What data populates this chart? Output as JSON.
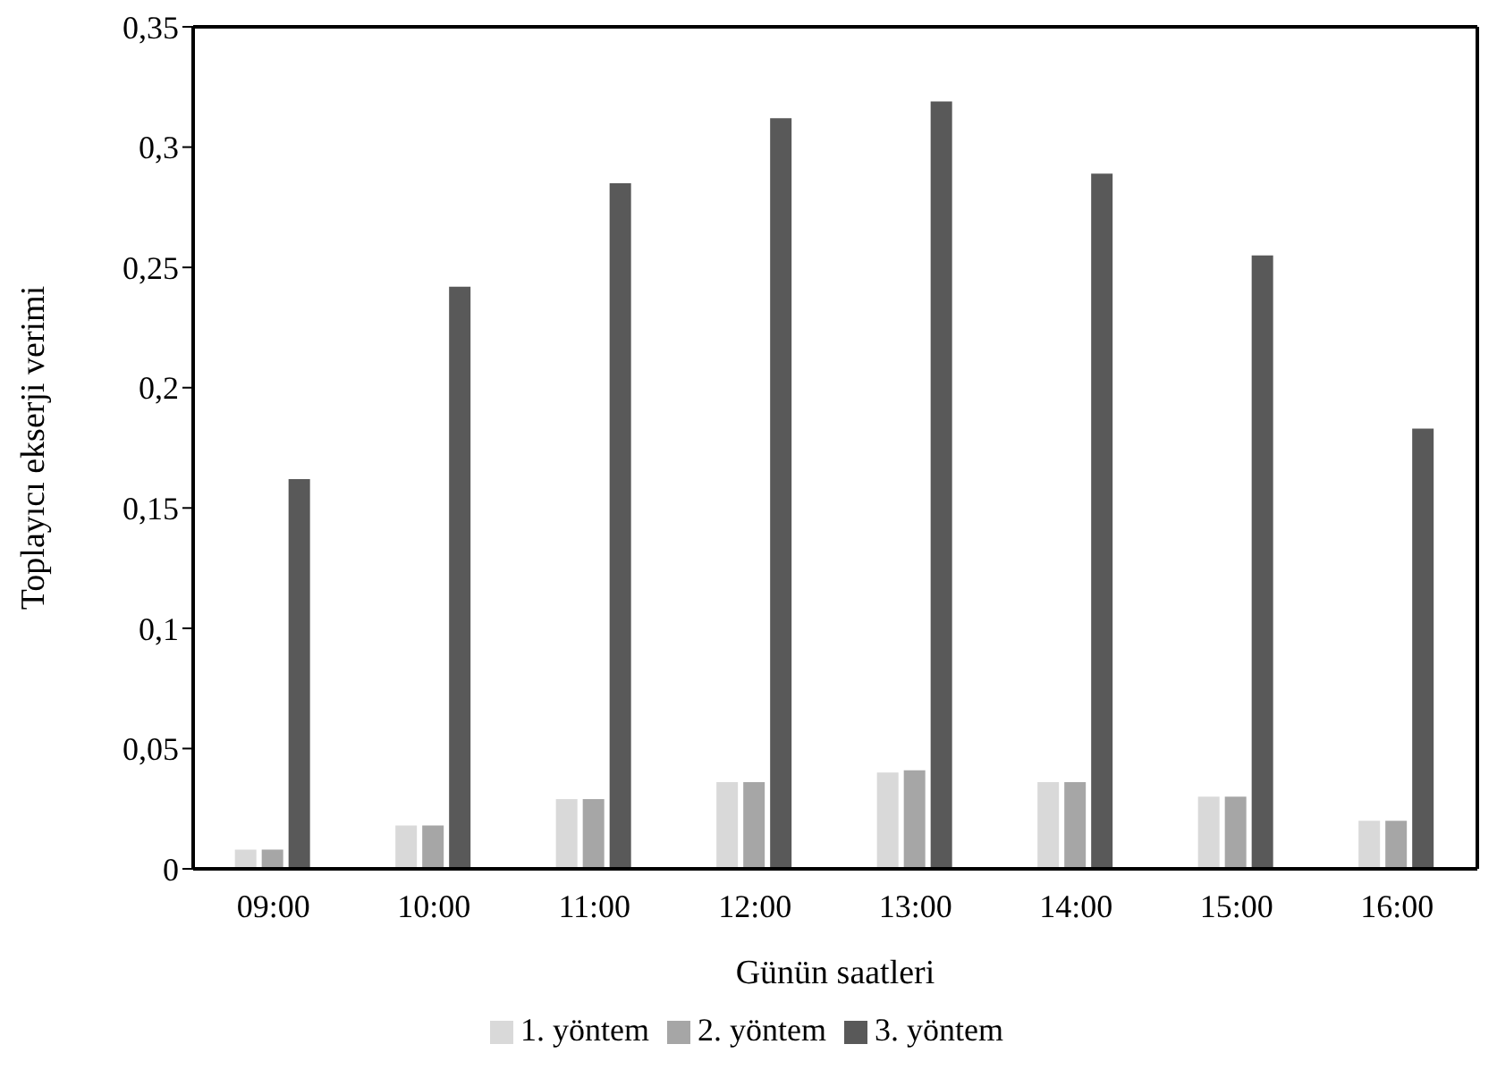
{
  "chart_data": {
    "type": "bar",
    "xlabel": "Günün saatleri",
    "ylabel": "Toplayıcı ekserji verimi",
    "categories": [
      "09:00",
      "10:00",
      "11:00",
      "12:00",
      "13:00",
      "14:00",
      "15:00",
      "16:00"
    ],
    "series": [
      {
        "name": "1. yöntem",
        "color": "#d9d9d9",
        "values": [
          0.008,
          0.018,
          0.029,
          0.036,
          0.04,
          0.036,
          0.03,
          0.02
        ]
      },
      {
        "name": "2. yöntem",
        "color": "#a6a6a6",
        "values": [
          0.008,
          0.018,
          0.029,
          0.036,
          0.041,
          0.036,
          0.03,
          0.02
        ]
      },
      {
        "name": "3. yöntem",
        "color": "#595959",
        "values": [
          0.162,
          0.242,
          0.285,
          0.312,
          0.319,
          0.289,
          0.255,
          0.183
        ]
      }
    ],
    "ylim": [
      0,
      0.35
    ],
    "yticks": [
      0,
      {
        "value": 0.05,
        "label": "0,05"
      },
      {
        "value": 0.1,
        "label": "0,1"
      },
      {
        "value": 0.15,
        "label": "0,15"
      },
      {
        "value": 0.2,
        "label": "0,2"
      },
      {
        "value": 0.25,
        "label": "0,25"
      },
      {
        "value": 0.3,
        "label": "0,3"
      },
      {
        "value": 0.35,
        "label": "0,35"
      }
    ],
    "grid": false,
    "legend": "bottom"
  }
}
